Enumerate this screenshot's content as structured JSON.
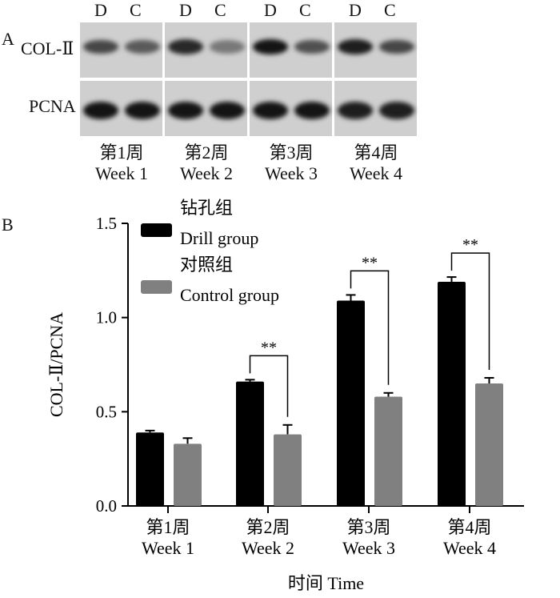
{
  "panel_a": {
    "label": "A",
    "lane_labels": [
      "D",
      "C",
      "D",
      "C",
      "D",
      "C",
      "D",
      "C"
    ],
    "rows": [
      {
        "name": "COL-Ⅱ",
        "intensity_D": [
          0.65,
          0.8,
          0.9,
          0.85
        ],
        "intensity_C": [
          0.55,
          0.4,
          0.6,
          0.65
        ]
      },
      {
        "name": "PCNA",
        "intensity_D": [
          0.9,
          0.9,
          0.9,
          0.85
        ],
        "intensity_C": [
          0.9,
          0.9,
          0.9,
          0.85
        ]
      }
    ],
    "weeks_cn": [
      "第1周",
      "第2周",
      "第3周",
      "第4周"
    ],
    "weeks_en": [
      "Week 1",
      "Week 2",
      "Week 3",
      "Week 4"
    ]
  },
  "panel_b_label": "B",
  "chart_data": {
    "type": "bar",
    "categories_cn": [
      "第1周",
      "第2周",
      "第3周",
      "第4周"
    ],
    "categories": [
      "Week 1",
      "Week 2",
      "Week 3",
      "Week 4"
    ],
    "series": [
      {
        "name_cn": "钻孔组",
        "name": "Drill group",
        "color": "#000000",
        "values": [
          0.39,
          0.66,
          1.09,
          1.19
        ],
        "errors": [
          0.01,
          0.01,
          0.03,
          0.025
        ]
      },
      {
        "name_cn": "对照组",
        "name": "Control group",
        "color": "#808080",
        "values": [
          0.33,
          0.38,
          0.58,
          0.65
        ],
        "errors": [
          0.03,
          0.05,
          0.02,
          0.03
        ]
      }
    ],
    "significance": [
      "",
      "**",
      "**",
      "**"
    ],
    "ylabel": "COL-Ⅱ/PCNA",
    "xlabel": "时间 Time",
    "ylim": [
      0,
      1.5
    ],
    "yticks": [
      "0.0",
      "0.5",
      "1.0",
      "1.5"
    ],
    "legend_position": "top-left"
  }
}
